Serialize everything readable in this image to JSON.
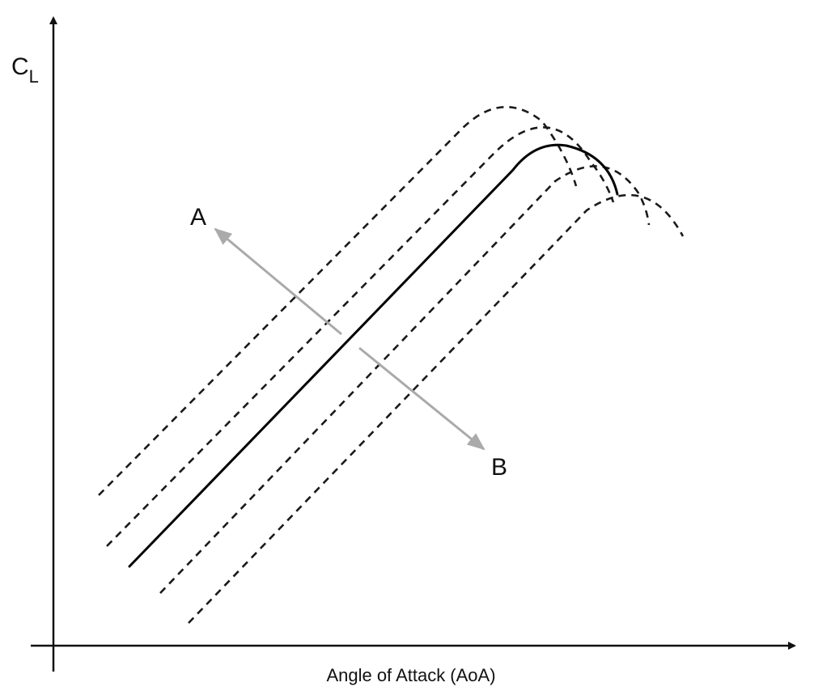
{
  "axes": {
    "y_label_main": "C",
    "y_label_sub": "L",
    "x_label": "Angle of Attack (AoA)"
  },
  "arrows": {
    "label_a": "A",
    "label_b": "B"
  },
  "colors": {
    "axis": "#111111",
    "curve": "#000000",
    "arrow": "#aaaaaa",
    "background": "#ffffff"
  }
}
